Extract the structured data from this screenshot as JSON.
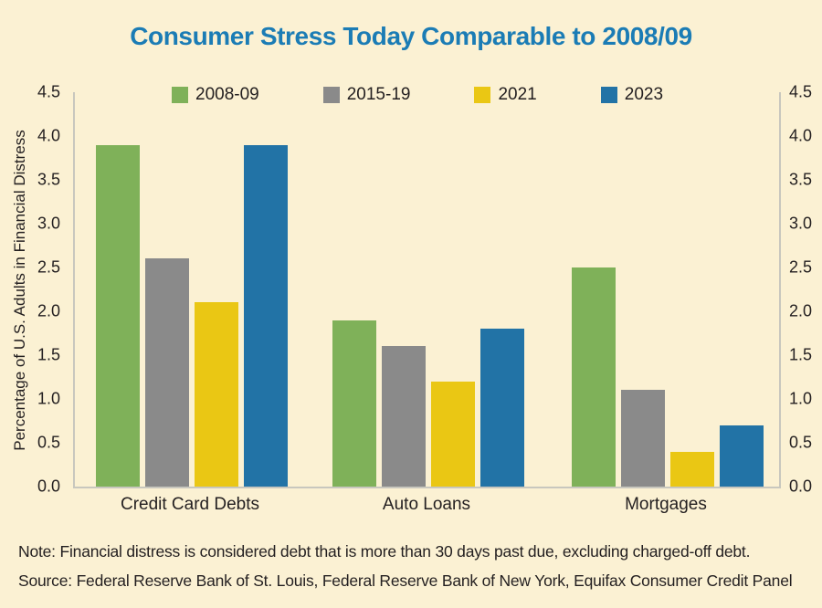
{
  "title": "Consumer Stress Today Comparable to 2008/09",
  "note": "Note: Financial distress is considered debt that is more than 30 days past due, excluding charged-off debt.",
  "source": "Source: Federal Reserve Bank of St. Louis, Federal Reserve Bank of New York, Equifax Consumer Credit Panel",
  "colors": {
    "background": "#FBF1D3",
    "title_blue": "#1B7CB5",
    "axis_line": "#C8C7BE",
    "text": "#231F20",
    "series_green": "#7FB159",
    "series_gray": "#8A8A8A",
    "series_yellow": "#EAC714",
    "series_blue": "#2273A6"
  },
  "chart_data": {
    "type": "bar",
    "title": "Consumer Stress Today Comparable to 2008/09",
    "xlabel": "",
    "ylabel": "Percentage of U.S. Adults in Financial Distress",
    "categories": [
      "Credit Card Debts",
      "Auto Loans",
      "Mortgages"
    ],
    "series": [
      {
        "name": "2008-09",
        "color": "#7FB159",
        "values": [
          3.9,
          1.9,
          2.5
        ]
      },
      {
        "name": "2015-19",
        "color": "#8A8A8A",
        "values": [
          2.6,
          1.6,
          1.1
        ]
      },
      {
        "name": "2021",
        "color": "#EAC714",
        "values": [
          2.1,
          1.2,
          0.4
        ]
      },
      {
        "name": "2023",
        "color": "#2273A6",
        "values": [
          3.9,
          1.8,
          0.7
        ]
      }
    ],
    "ylim": [
      0,
      4.5
    ],
    "yticks": [
      "0.0",
      "0.5",
      "1.0",
      "1.5",
      "2.0",
      "2.5",
      "3.0",
      "3.5",
      "4.0",
      "4.5"
    ],
    "dual_axis_labels": true,
    "grid": false,
    "legend_position": "top"
  }
}
